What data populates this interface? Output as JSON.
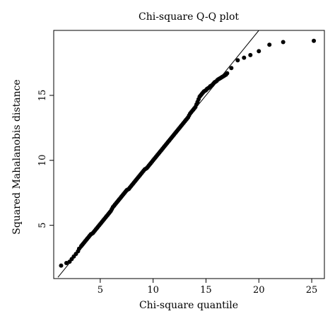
{
  "chart_data": {
    "type": "scatter",
    "title": "Chi-square Q-Q plot",
    "xlabel": "Chi-square quantile",
    "ylabel": "Squared Mahalanobis distance",
    "xlim": [
      0.6,
      26.2
    ],
    "ylim": [
      0.9,
      20.0
    ],
    "xticks": [
      5,
      10,
      15,
      20,
      25
    ],
    "yticks": [
      5,
      10,
      15
    ],
    "xtick_labels": [
      "5",
      "10",
      "15",
      "20",
      "25"
    ],
    "ytick_labels": [
      "5",
      "10",
      "15"
    ],
    "grid": false,
    "legend": "none",
    "reference_line": {
      "x": [
        1.0,
        20.0
      ],
      "y": [
        1.0,
        20.0
      ]
    },
    "points": {
      "x": [
        1.3,
        1.8,
        2.1,
        2.3,
        2.5,
        2.7,
        2.9,
        3.0,
        3.2,
        3.3,
        3.4,
        3.5,
        3.6,
        3.7,
        3.8,
        3.9,
        4.0,
        4.1,
        4.2,
        4.3,
        4.4,
        4.5,
        4.6,
        4.7,
        4.8,
        4.9,
        5.0,
        5.1,
        5.2,
        5.3,
        5.4,
        5.5,
        5.6,
        5.7,
        5.8,
        5.9,
        6.0,
        6.1,
        6.2,
        6.3,
        6.4,
        6.5,
        6.6,
        6.7,
        6.8,
        6.9,
        7.0,
        7.1,
        7.2,
        7.3,
        7.4,
        7.5,
        7.6,
        7.7,
        7.8,
        7.9,
        8.0,
        8.1,
        8.2,
        8.3,
        8.4,
        8.5,
        8.6,
        8.7,
        8.8,
        8.9,
        9.0,
        9.1,
        9.2,
        9.3,
        9.4,
        9.5,
        9.6,
        9.7,
        9.8,
        9.9,
        10.0,
        10.1,
        10.2,
        10.3,
        10.4,
        10.5,
        10.6,
        10.7,
        10.8,
        10.9,
        11.0,
        11.1,
        11.2,
        11.3,
        11.4,
        11.5,
        11.6,
        11.7,
        11.8,
        11.9,
        12.0,
        12.1,
        12.2,
        12.3,
        12.4,
        12.5,
        12.6,
        12.7,
        12.8,
        12.9,
        13.0,
        13.1,
        13.2,
        13.3,
        13.4,
        13.5,
        13.6,
        13.7,
        13.8,
        13.9,
        14.0,
        14.1,
        14.2,
        14.3,
        14.4,
        14.5,
        14.6,
        14.7,
        14.8,
        14.9,
        15.0,
        15.1,
        15.2,
        15.3,
        15.4,
        15.5,
        15.6,
        15.7,
        15.8,
        15.9,
        16.0,
        16.1,
        16.2,
        16.3,
        16.4,
        16.5,
        16.6,
        16.7,
        16.8,
        16.9,
        17.0,
        17.4,
        18.0,
        18.6,
        19.2,
        20.0,
        21.0,
        22.3,
        25.2
      ],
      "y": [
        1.9,
        2.1,
        2.2,
        2.4,
        2.6,
        2.8,
        3.0,
        3.2,
        3.4,
        3.5,
        3.6,
        3.7,
        3.8,
        3.9,
        4.0,
        4.1,
        4.2,
        4.3,
        4.35,
        4.4,
        4.5,
        4.6,
        4.7,
        4.8,
        4.9,
        5.0,
        5.1,
        5.2,
        5.3,
        5.4,
        5.5,
        5.6,
        5.7,
        5.8,
        5.9,
        6.0,
        6.1,
        6.25,
        6.4,
        6.5,
        6.6,
        6.7,
        6.8,
        6.9,
        7.0,
        7.1,
        7.2,
        7.3,
        7.4,
        7.5,
        7.6,
        7.7,
        7.75,
        7.8,
        7.9,
        8.0,
        8.1,
        8.2,
        8.3,
        8.4,
        8.5,
        8.6,
        8.7,
        8.8,
        8.9,
        9.0,
        9.1,
        9.2,
        9.3,
        9.35,
        9.4,
        9.5,
        9.6,
        9.7,
        9.8,
        9.9,
        10.0,
        10.1,
        10.2,
        10.3,
        10.4,
        10.5,
        10.6,
        10.7,
        10.8,
        10.9,
        11.0,
        11.1,
        11.2,
        11.3,
        11.4,
        11.5,
        11.6,
        11.7,
        11.8,
        11.9,
        12.0,
        12.1,
        12.2,
        12.3,
        12.4,
        12.5,
        12.6,
        12.7,
        12.8,
        12.9,
        13.0,
        13.1,
        13.2,
        13.3,
        13.45,
        13.6,
        13.7,
        13.8,
        13.9,
        14.0,
        14.1,
        14.3,
        14.5,
        14.7,
        14.9,
        15.0,
        15.1,
        15.2,
        15.3,
        15.35,
        15.4,
        15.5,
        15.55,
        15.6,
        15.7,
        15.75,
        15.8,
        15.9,
        16.0,
        16.05,
        16.1,
        16.2,
        16.25,
        16.3,
        16.35,
        16.4,
        16.45,
        16.5,
        16.55,
        16.6,
        16.7,
        17.1,
        17.7,
        17.9,
        18.1,
        18.4,
        18.9,
        19.1,
        19.2
      ]
    }
  }
}
